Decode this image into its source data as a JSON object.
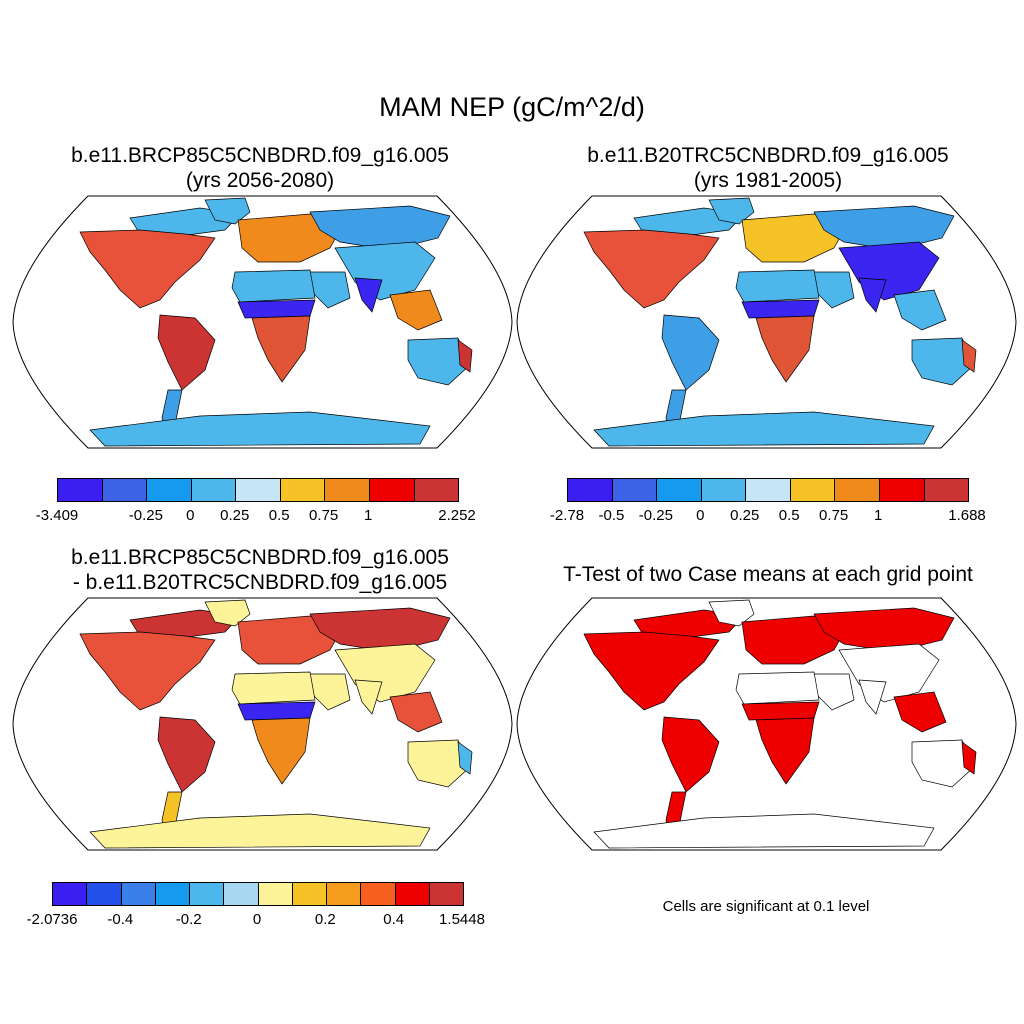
{
  "figure": {
    "title": "MAM NEP (gC/m^2/d)"
  },
  "panels": [
    {
      "title_line1": "b.e11.BRCP85C5CNBDRD.f09_g16.005",
      "title_line2": "(yrs 2056-2080)",
      "ocean": "#ffffff",
      "land": {
        "north_america": "#e8513a",
        "north_america_arctic": "#4db7ec",
        "south_america": "#cc3333",
        "south_america_south": "#3e9fe6",
        "europe": "#f08a1d",
        "siberia": "#3e9fe6",
        "asia_south": "#4db7ec",
        "sahara": "#4db7ec",
        "sahel": "#3a26f0",
        "africa_south": "#e05535",
        "arabia": "#4db7ec",
        "india": "#3a26f0",
        "se_asia": "#f08a1d",
        "australia": "#4db7ec",
        "australia_east": "#cc3333",
        "greenland": "#4db7ec",
        "antarctica": "#4db7ec"
      }
    },
    {
      "title_line1": "b.e11.B20TRC5CNBDRD.f09_g16.005",
      "title_line2": "(yrs 1981-2005)",
      "ocean": "#ffffff",
      "land": {
        "north_america": "#e8513a",
        "north_america_arctic": "#4db7ec",
        "south_america": "#3e9fe6",
        "south_america_south": "#3e9fe6",
        "europe": "#f5c227",
        "siberia": "#3e9fe6",
        "asia_south": "#3a26f0",
        "sahara": "#4db7ec",
        "sahel": "#3a26f0",
        "africa_south": "#e05535",
        "arabia": "#4db7ec",
        "india": "#3a26f0",
        "se_asia": "#4db7ec",
        "australia": "#4db7ec",
        "australia_east": "#e05535",
        "greenland": "#4db7ec",
        "antarctica": "#4db7ec"
      }
    },
    {
      "title_line1": "b.e11.BRCP85C5CNBDRD.f09_g16.005",
      "title_line2": "- b.e11.B20TRC5CNBDRD.f09_g16.005",
      "ocean": "#ffffff",
      "land": {
        "north_america": "#e8513a",
        "north_america_arctic": "#cc3333",
        "south_america": "#cc3333",
        "south_america_south": "#f5c227",
        "europe": "#e8513a",
        "siberia": "#cc3333",
        "asia_south": "#fdf398",
        "sahara": "#fdf398",
        "sahel": "#3a26f0",
        "africa_south": "#f08a1d",
        "arabia": "#fdf398",
        "india": "#fdf398",
        "se_asia": "#e8513a",
        "australia": "#fdf398",
        "australia_east": "#4db7ec",
        "greenland": "#fdf398",
        "antarctica": "#fdf398"
      }
    },
    {
      "title_line1": "T-Test of two Case means at each grid point",
      "title_line2": "",
      "ocean": "#ffffff",
      "land": {
        "north_america": "#ee0000",
        "north_america_arctic": "#ee0000",
        "south_america": "#ee0000",
        "south_america_south": "#ee0000",
        "europe": "#ee0000",
        "siberia": "#ee0000",
        "asia_south": "#ffffff",
        "sahara": "#ffffff",
        "sahel": "#ee0000",
        "africa_south": "#ee0000",
        "arabia": "#ffffff",
        "india": "#ffffff",
        "se_asia": "#ee0000",
        "australia": "#ffffff",
        "australia_east": "#ee0000",
        "greenland": "#ffffff",
        "antarctica": "#ffffff"
      }
    }
  ],
  "colorbars": [
    {
      "colors": [
        "#3a1ff0",
        "#3c62e6",
        "#169af0",
        "#4db7ec",
        "#c6e6f8",
        "#f5c227",
        "#f08a1d",
        "#ee0000",
        "#cc3333"
      ],
      "labels": [
        "-3.409",
        "-0.25",
        "0",
        "0.25",
        "0.5",
        "0.75",
        "1",
        "2.252"
      ],
      "label_boundaries": [
        0,
        2,
        3,
        4,
        5,
        6,
        7,
        9
      ]
    },
    {
      "colors": [
        "#3a1ff0",
        "#3c62e6",
        "#169af0",
        "#4db7ec",
        "#c6e6f8",
        "#f5c227",
        "#f08a1d",
        "#ee0000",
        "#cc3333"
      ],
      "labels": [
        "-2.78",
        "-0.5",
        "-0.25",
        "0",
        "0.25",
        "0.5",
        "0.75",
        "1",
        "1.688"
      ],
      "label_boundaries": [
        0,
        1,
        2,
        3,
        4,
        5,
        6,
        7,
        9
      ]
    },
    {
      "colors": [
        "#3a1ff0",
        "#2250e8",
        "#3a80e8",
        "#169af0",
        "#4db7ec",
        "#a6d8f2",
        "#fdf398",
        "#f5c227",
        "#f59b1d",
        "#f56020",
        "#ee0000",
        "#cc3333"
      ],
      "labels": [
        "-2.0736",
        "-0.4",
        "-0.2",
        "0",
        "0.2",
        "0.4",
        "1.5448"
      ],
      "label_boundaries": [
        0,
        2,
        4,
        6,
        8,
        10,
        12
      ]
    }
  ],
  "significance_note": "Cells are significant at 0.1 level"
}
